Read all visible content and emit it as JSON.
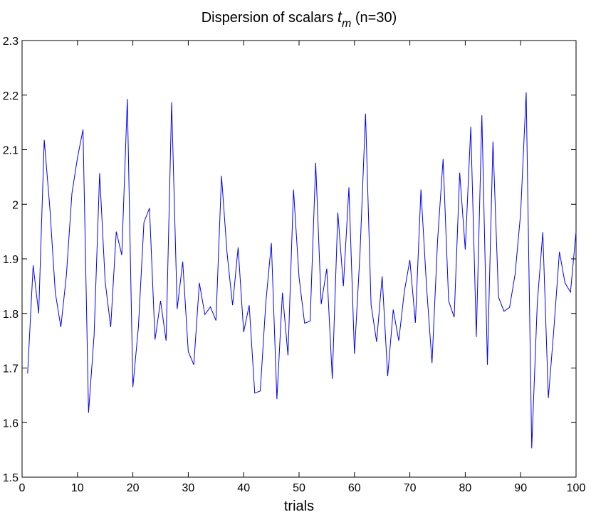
{
  "chart_data": {
    "type": "line",
    "title": {
      "prefix": "Dispersion of  scalars  ",
      "symbol": "t",
      "subscript": "m",
      "suffix": " (n=30)"
    },
    "xlabel": "trials",
    "ylabel": "",
    "xlim": [
      0,
      100
    ],
    "ylim": [
      1.5,
      2.3
    ],
    "xticks": [
      0,
      10,
      20,
      30,
      40,
      50,
      60,
      70,
      80,
      90,
      100
    ],
    "xtick_labels": [
      "0",
      "10",
      "20",
      "30",
      "40",
      "50",
      "60",
      "70",
      "80",
      "90",
      "100"
    ],
    "yticks": [
      1.5,
      1.6,
      1.7,
      1.8,
      1.9,
      2.0,
      2.1,
      2.2,
      2.3
    ],
    "ytick_labels": [
      "1.5",
      "1.6",
      "1.7",
      "1.8",
      "1.9",
      "2",
      "2.1",
      "2.2",
      "2.3"
    ],
    "grid": false,
    "line_color": "#0000ff",
    "series": [
      {
        "x": [
          1,
          2,
          3,
          4,
          5,
          6,
          7,
          8,
          9,
          10,
          11,
          12,
          13,
          14,
          15,
          16,
          17,
          18,
          19,
          20,
          21,
          22,
          23,
          24,
          25,
          26,
          27,
          28,
          29,
          30,
          31,
          32,
          33,
          34,
          35,
          36,
          37,
          38,
          39,
          40,
          41,
          42,
          43,
          44,
          45,
          46,
          47,
          48,
          49,
          50,
          51,
          52,
          53,
          54,
          55,
          56,
          57,
          58,
          59,
          60,
          61,
          62,
          63,
          64,
          65,
          66,
          67,
          68,
          69,
          70,
          71,
          72,
          73,
          74,
          75,
          76,
          77,
          78,
          79,
          80,
          81,
          82,
          83,
          84,
          85,
          86,
          87,
          88,
          89,
          90,
          91,
          92,
          93,
          94,
          95,
          96,
          97,
          98,
          99,
          100
        ],
        "values": [
          1.69,
          1.888,
          1.8,
          2.118,
          1.995,
          1.838,
          1.775,
          1.87,
          2.02,
          2.085,
          2.137,
          1.618,
          1.76,
          2.057,
          1.858,
          1.775,
          1.95,
          1.907,
          2.193,
          1.665,
          1.775,
          1.967,
          1.993,
          1.752,
          1.823,
          1.75,
          2.187,
          1.808,
          1.895,
          1.73,
          1.706,
          1.856,
          1.798,
          1.812,
          1.787,
          2.052,
          1.911,
          1.815,
          1.921,
          1.766,
          1.815,
          1.654,
          1.658,
          1.82,
          1.929,
          1.643,
          1.838,
          1.723,
          2.027,
          1.866,
          1.782,
          1.786,
          2.076,
          1.817,
          1.882,
          1.68,
          1.985,
          1.85,
          2.031,
          1.726,
          1.91,
          2.166,
          1.816,
          1.748,
          1.868,
          1.685,
          1.807,
          1.75,
          1.84,
          1.898,
          1.783,
          2.027,
          1.851,
          1.709,
          1.933,
          2.083,
          1.823,
          1.793,
          2.058,
          1.917,
          2.142,
          1.757,
          2.163,
          1.706,
          2.115,
          1.83,
          1.804,
          1.811,
          1.872,
          1.984,
          2.205,
          1.553,
          1.818,
          1.949,
          1.645,
          1.772,
          1.913,
          1.856,
          1.839,
          1.95
        ]
      }
    ]
  }
}
